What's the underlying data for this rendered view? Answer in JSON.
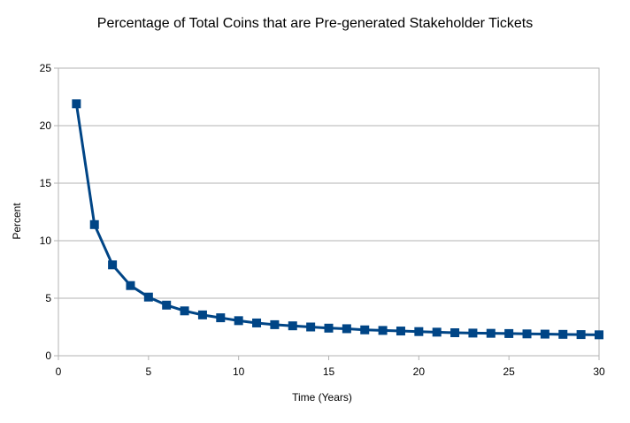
{
  "chart_data": {
    "type": "line",
    "title": "Percentage of Total Coins that are Pre-generated Stakeholder Tickets",
    "xlabel": "Time (Years)",
    "ylabel": "Percent",
    "xlim": [
      0,
      30
    ],
    "ylim": [
      0,
      25
    ],
    "x_ticks": [
      0,
      5,
      10,
      15,
      20,
      25,
      30
    ],
    "y_ticks": [
      0,
      5,
      10,
      15,
      20,
      25
    ],
    "grid": {
      "horizontal": true,
      "vertical": false
    },
    "legend": "none",
    "series": [
      {
        "color": "#004586",
        "marker": "square",
        "x": [
          1,
          2,
          3,
          4,
          5,
          6,
          7,
          8,
          9,
          10,
          11,
          12,
          13,
          14,
          15,
          16,
          17,
          18,
          19,
          20,
          21,
          22,
          23,
          24,
          25,
          26,
          27,
          28,
          29,
          30
        ],
        "y": [
          21.9,
          11.4,
          7.9,
          6.1,
          5.1,
          4.4,
          3.9,
          3.55,
          3.3,
          3.05,
          2.85,
          2.7,
          2.6,
          2.5,
          2.4,
          2.35,
          2.25,
          2.2,
          2.15,
          2.1,
          2.05,
          2.0,
          1.97,
          1.95,
          1.93,
          1.9,
          1.88,
          1.86,
          1.84,
          1.82
        ]
      }
    ]
  }
}
